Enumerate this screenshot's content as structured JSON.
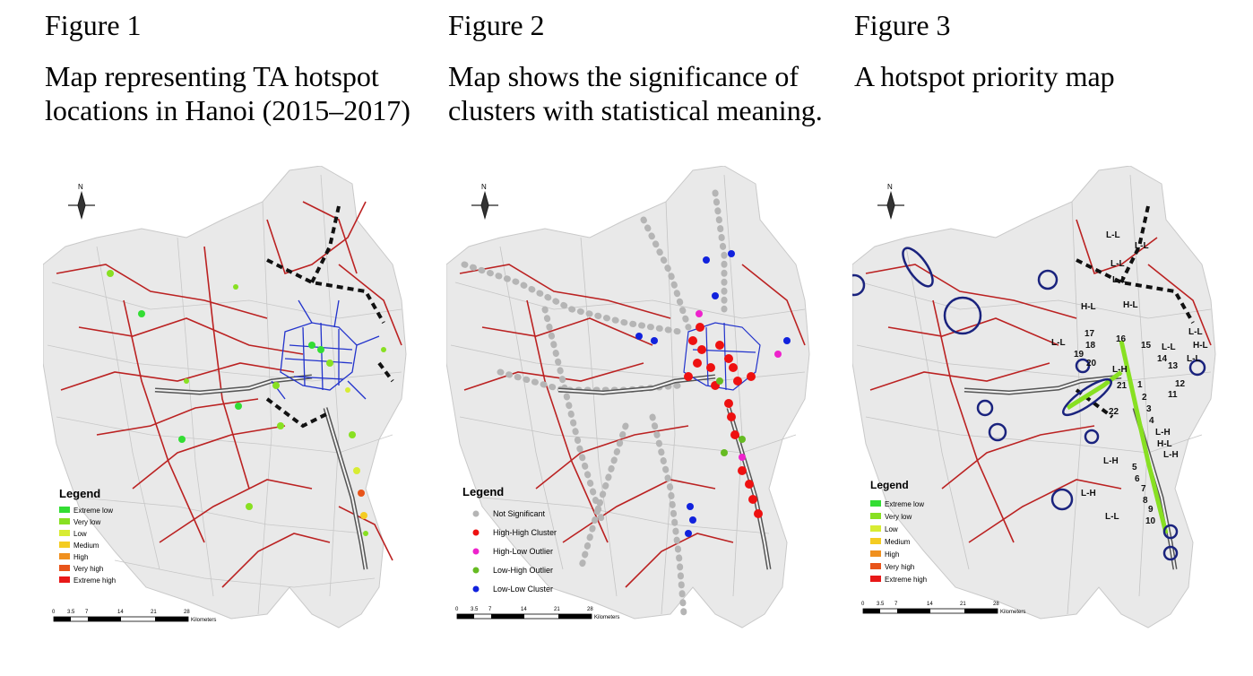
{
  "figures": [
    {
      "label": "Figure 1",
      "caption": "Map representing TA hotspot locations in Hanoi (2015–2017)",
      "legend_title": "Legend",
      "legend_items": [
        {
          "label": "Extreme low",
          "color": "#33dd33"
        },
        {
          "label": "Very low",
          "color": "#88e022"
        },
        {
          "label": "Low",
          "color": "#d8ec33"
        },
        {
          "label": "Medium",
          "color": "#f4cc22"
        },
        {
          "label": "High",
          "color": "#f0901e"
        },
        {
          "label": "Very high",
          "color": "#e8541a"
        },
        {
          "label": "Extreme high",
          "color": "#e81818"
        }
      ],
      "scale_ticks": [
        "0",
        "3.5",
        "7",
        "14",
        "21",
        "28"
      ],
      "scale_unit": "Kilometers"
    },
    {
      "label": "Figure 2",
      "caption": "Map shows the significance of clusters with statistical meaning.",
      "legend_title": "Legend",
      "legend_items": [
        {
          "label": "Not Significant",
          "color": "#b5b5b5"
        },
        {
          "label": "High-High Cluster",
          "color": "#ee1111"
        },
        {
          "label": "High-Low Outlier",
          "color": "#ee22cc"
        },
        {
          "label": "Low-High Outlier",
          "color": "#66bb22"
        },
        {
          "label": "Low-Low Cluster",
          "color": "#1122dd"
        }
      ],
      "scale_ticks": [
        "0",
        "3.5",
        "7",
        "14",
        "21",
        "28"
      ],
      "scale_unit": "Kilometers"
    },
    {
      "label": "Figure 3",
      "caption": "A hotspot priority map",
      "legend_title": "Legend",
      "legend_items": [
        {
          "label": "Extreme low",
          "color": "#33dd33"
        },
        {
          "label": "Very low",
          "color": "#88e022"
        },
        {
          "label": "Low",
          "color": "#d8ec33"
        },
        {
          "label": "Medium",
          "color": "#f4cc22"
        },
        {
          "label": "High",
          "color": "#f0901e"
        },
        {
          "label": "Very high",
          "color": "#e8541a"
        },
        {
          "label": "Extreme high",
          "color": "#e81818"
        }
      ],
      "scale_ticks": [
        "0",
        "3.5",
        "7",
        "14",
        "21",
        "28"
      ],
      "scale_unit": "Kilometers",
      "map_labels": [
        "L-L",
        "L-L",
        "L-L",
        "L-L",
        "H-L",
        "H-L",
        "L-L",
        "H-L",
        "L-L",
        "L-L",
        "L-H",
        "L-H",
        "L-H",
        "H-L",
        "L-H",
        "L-H",
        "L-L",
        "L-L",
        "1",
        "2",
        "3",
        "4",
        "5",
        "6",
        "7",
        "8",
        "9",
        "10",
        "11",
        "12",
        "13",
        "14",
        "15",
        "16",
        "17",
        "18",
        "19",
        "20",
        "21",
        "22"
      ]
    }
  ],
  "compass_label": "N"
}
